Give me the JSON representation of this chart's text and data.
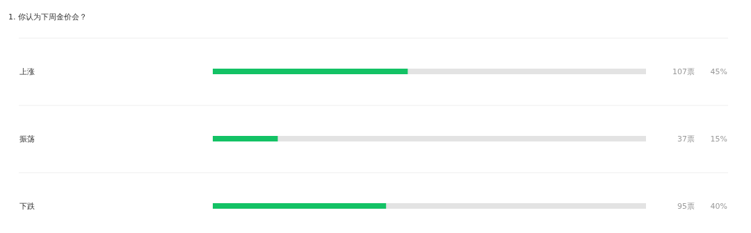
{
  "chart_data": {
    "type": "bar",
    "orientation": "horizontal",
    "title": "1. 你认为下周金价会？",
    "categories": [
      "上涨",
      "振荡",
      "下跌"
    ],
    "values": [
      45,
      15,
      40
    ],
    "color": "#13c265",
    "xlim": [
      0,
      100
    ],
    "tick_labels": false,
    "value_labels": [
      "45%",
      "15%",
      "40%"
    ],
    "annotations": [
      "107票",
      "37票",
      "95票"
    ]
  }
}
